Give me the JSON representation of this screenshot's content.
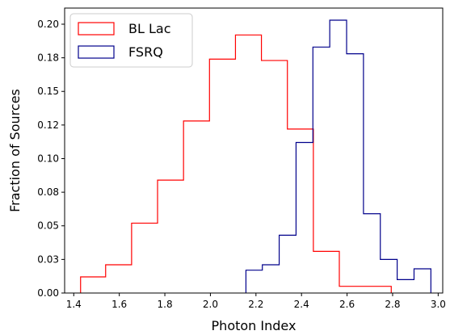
{
  "chart_data": {
    "type": "histogram",
    "title": "",
    "xlabel": "Photon Index",
    "ylabel": "Fraction of Sources",
    "xlim": [
      1.36,
      3.02
    ],
    "ylim": [
      0,
      0.212
    ],
    "xticks": [
      1.4,
      1.6,
      1.8,
      2.0,
      2.2,
      2.4,
      2.6,
      2.8,
      3.0
    ],
    "xtick_labels": [
      "1.4",
      "1.6",
      "1.8",
      "2.0",
      "2.2",
      "2.4",
      "2.6",
      "2.8",
      "3.0"
    ],
    "yticks": [
      0.0,
      0.025,
      0.05,
      0.075,
      0.1,
      0.125,
      0.15,
      0.175,
      0.2
    ],
    "ytick_labels": [
      "0.00",
      "0.03",
      "0.05",
      "0.08",
      "0.10",
      "0.12",
      "0.15",
      "0.18",
      "0.20"
    ],
    "grid": false,
    "legend_position": "top-left",
    "series": [
      {
        "name": "BL Lac",
        "color": "#ff0000",
        "bin_edges": [
          1.43,
          1.54,
          1.654,
          1.768,
          1.882,
          1.996,
          2.11,
          2.224,
          2.338,
          2.452,
          2.566,
          2.68,
          2.794
        ],
        "values": [
          0.012,
          0.021,
          0.052,
          0.084,
          0.128,
          0.174,
          0.192,
          0.173,
          0.122,
          0.031,
          0.005,
          0.005
        ]
      },
      {
        "name": "FSRQ",
        "color": "#00008b",
        "bin_edges": [
          2.156,
          2.228,
          2.302,
          2.376,
          2.45,
          2.524,
          2.598,
          2.672,
          2.746,
          2.82,
          2.894,
          2.968
        ],
        "values": [
          0.017,
          0.021,
          0.043,
          0.112,
          0.183,
          0.203,
          0.178,
          0.059,
          0.025,
          0.01,
          0.018
        ]
      }
    ]
  }
}
